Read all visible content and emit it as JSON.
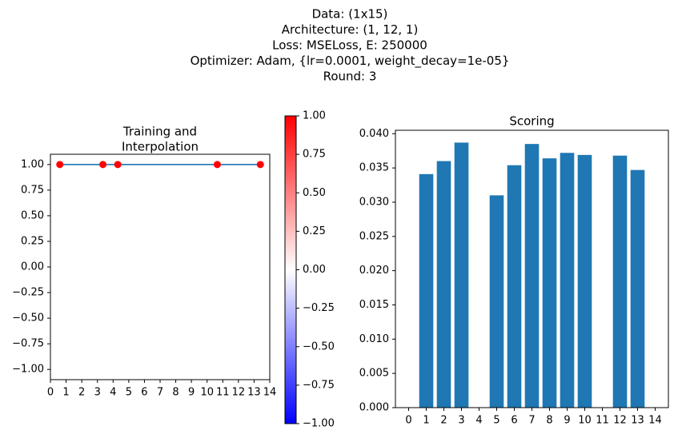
{
  "suptitle_lines": [
    "Data: (1x15)",
    "Architecture: (1, 12, 1)",
    "Loss: MSELoss, E: 250000",
    "Optimizer: Adam, {lr=0.0001, weight_decay=1e-05}",
    "Round: 3"
  ],
  "chart_data": [
    {
      "type": "scatter",
      "title": "Training and\n Interpolation",
      "xlim": [
        0,
        14
      ],
      "ylim": [
        -1.1,
        1.1
      ],
      "xticks": [
        0,
        1,
        2,
        3,
        4,
        5,
        6,
        7,
        8,
        9,
        10,
        11,
        12,
        13,
        14
      ],
      "yticks": [
        1.0,
        0.75,
        0.5,
        0.25,
        0.0,
        -0.25,
        -0.5,
        -0.75,
        -1.0
      ],
      "ytick_labels": [
        "1.00",
        "0.75",
        "0.50",
        "0.25",
        "0.00",
        "−0.25",
        "−0.50",
        "−0.75",
        "−1.00"
      ],
      "line": {
        "x": [
          0.6,
          13.4
        ],
        "y": [
          1.0,
          1.0
        ],
        "color": "#1f77b4"
      },
      "points": {
        "x": [
          0.6,
          3.35,
          4.3,
          10.65,
          13.4
        ],
        "y": [
          1.0,
          1.0,
          1.0,
          1.0,
          1.0
        ],
        "color": "#ff0000"
      }
    },
    {
      "type": "colorbar",
      "cmap": "bwr",
      "range": [
        -1.0,
        1.0
      ],
      "ticks": [
        1.0,
        0.75,
        0.5,
        0.25,
        0.0,
        -0.25,
        -0.5,
        -0.75,
        -1.0
      ],
      "tick_labels": [
        "1.00",
        "0.75",
        "0.50",
        "0.25",
        "0.00",
        "−0.25",
        "−0.50",
        "−0.75",
        "−1.00"
      ],
      "colors": {
        "low": "#0000ff",
        "mid": "#ffffff",
        "high": "#ff0000"
      }
    },
    {
      "type": "bar",
      "title": "Scoring",
      "categories": [
        "0",
        "1",
        "2",
        "3",
        "4",
        "5",
        "6",
        "7",
        "8",
        "9",
        "10",
        "11",
        "12",
        "13",
        "14"
      ],
      "values": [
        0,
        0.0341,
        0.036,
        0.0387,
        0,
        0.031,
        0.0354,
        0.0385,
        0.0364,
        0.0372,
        0.0369,
        0,
        0.0368,
        0.0347,
        0
      ],
      "ylim": [
        0,
        0.0405
      ],
      "yticks": [
        0.0,
        0.005,
        0.01,
        0.015,
        0.02,
        0.025,
        0.03,
        0.035,
        0.04
      ],
      "ytick_labels": [
        "0.000",
        "0.005",
        "0.010",
        "0.015",
        "0.020",
        "0.025",
        "0.030",
        "0.035",
        "0.040"
      ],
      "color": "#1f77b4"
    }
  ]
}
